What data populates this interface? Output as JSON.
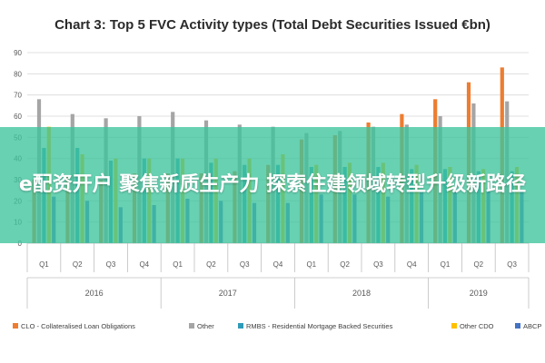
{
  "chart_data": {
    "type": "bar",
    "title": "Chart 3: Top 5 FVC Activity types (Total Debt Securities Issued €bn)",
    "xlabel": "",
    "ylabel": "",
    "ylim": [
      0,
      90
    ],
    "yticks": [
      0,
      10,
      20,
      30,
      40,
      50,
      60,
      70,
      80,
      90
    ],
    "grid": true,
    "legend_position": "bottom",
    "categories": [
      "Q1",
      "Q2",
      "Q3",
      "Q4",
      "Q1",
      "Q2",
      "Q3",
      "Q4",
      "Q1",
      "Q2",
      "Q3",
      "Q4",
      "Q1",
      "Q2",
      "Q3"
    ],
    "groups": [
      {
        "label": "2016",
        "count": 4
      },
      {
        "label": "2017",
        "count": 4
      },
      {
        "label": "2018",
        "count": 4
      },
      {
        "label": "2019",
        "count": 3
      }
    ],
    "series": [
      {
        "name": "CLO - Collateralised Loan Obligations",
        "color": "#ed7d31",
        "values": [
          30,
          32,
          30,
          33,
          33,
          33,
          34,
          37,
          49,
          51,
          57,
          61,
          68,
          76,
          83
        ]
      },
      {
        "name": "Other",
        "color": "#a5a5a5",
        "values": [
          68,
          61,
          59,
          60,
          62,
          58,
          56,
          55,
          52,
          53,
          55,
          56,
          60,
          66,
          67
        ]
      },
      {
        "name": "RMBS - Residential Mortgage Backed Securities",
        "color": "#2e9bb8",
        "values": [
          45,
          45,
          39,
          40,
          40,
          38,
          37,
          37,
          36,
          36,
          36,
          35,
          35,
          34,
          34
        ]
      },
      {
        "name": "Other CDO",
        "color": "#ffc000",
        "values": [
          55,
          42,
          40,
          40,
          40,
          40,
          40,
          42,
          37,
          38,
          38,
          37,
          36,
          35,
          36
        ]
      },
      {
        "name": "ABCP",
        "color": "#4472c4",
        "values": [
          22,
          20,
          17,
          18,
          21,
          20,
          19,
          19,
          23,
          23,
          22,
          24,
          25,
          26,
          25
        ]
      }
    ]
  },
  "overlay": {
    "text": "e配资开户 聚焦新质生产力 探索住建领域转型升级新路径"
  }
}
